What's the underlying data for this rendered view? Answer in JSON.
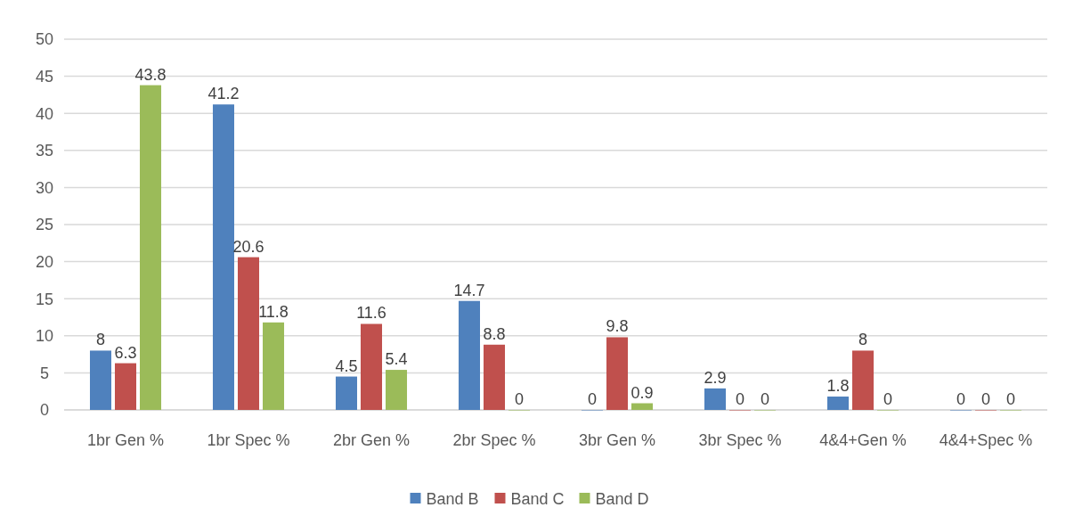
{
  "chart_data": {
    "type": "bar",
    "categories": [
      "1br Gen %",
      "1br Spec %",
      "2br Gen %",
      "2br Spec %",
      "3br Gen %",
      "3br Spec %",
      "4&4+Gen %",
      "4&4+Spec %"
    ],
    "series": [
      {
        "name": "Band B",
        "color": "#4f81bd",
        "values": [
          8,
          41.2,
          4.5,
          14.7,
          0,
          2.9,
          1.8,
          0
        ],
        "value_labels": [
          "8",
          "41.2",
          "4.5",
          "14.7",
          "0",
          "2.9",
          "1.8",
          "0"
        ]
      },
      {
        "name": "Band C",
        "color": "#c0504d",
        "values": [
          6.3,
          20.6,
          11.6,
          8.8,
          9.8,
          0,
          8,
          0
        ],
        "value_labels": [
          "6.3",
          "20.6",
          "11.6",
          "8.8",
          "9.8",
          "0",
          "8",
          "0"
        ]
      },
      {
        "name": "Band D",
        "color": "#9bbb59",
        "values": [
          43.8,
          11.8,
          5.4,
          0,
          0.9,
          0,
          0,
          0
        ],
        "value_labels": [
          "43.8",
          "11.8",
          "5.4",
          "0",
          "0.9",
          "0",
          "0",
          "0"
        ]
      }
    ],
    "ylim": [
      0,
      50
    ],
    "yticks": [
      0,
      5,
      10,
      15,
      20,
      25,
      30,
      35,
      40,
      45,
      50
    ],
    "grid": "y",
    "legend": "bottom"
  }
}
